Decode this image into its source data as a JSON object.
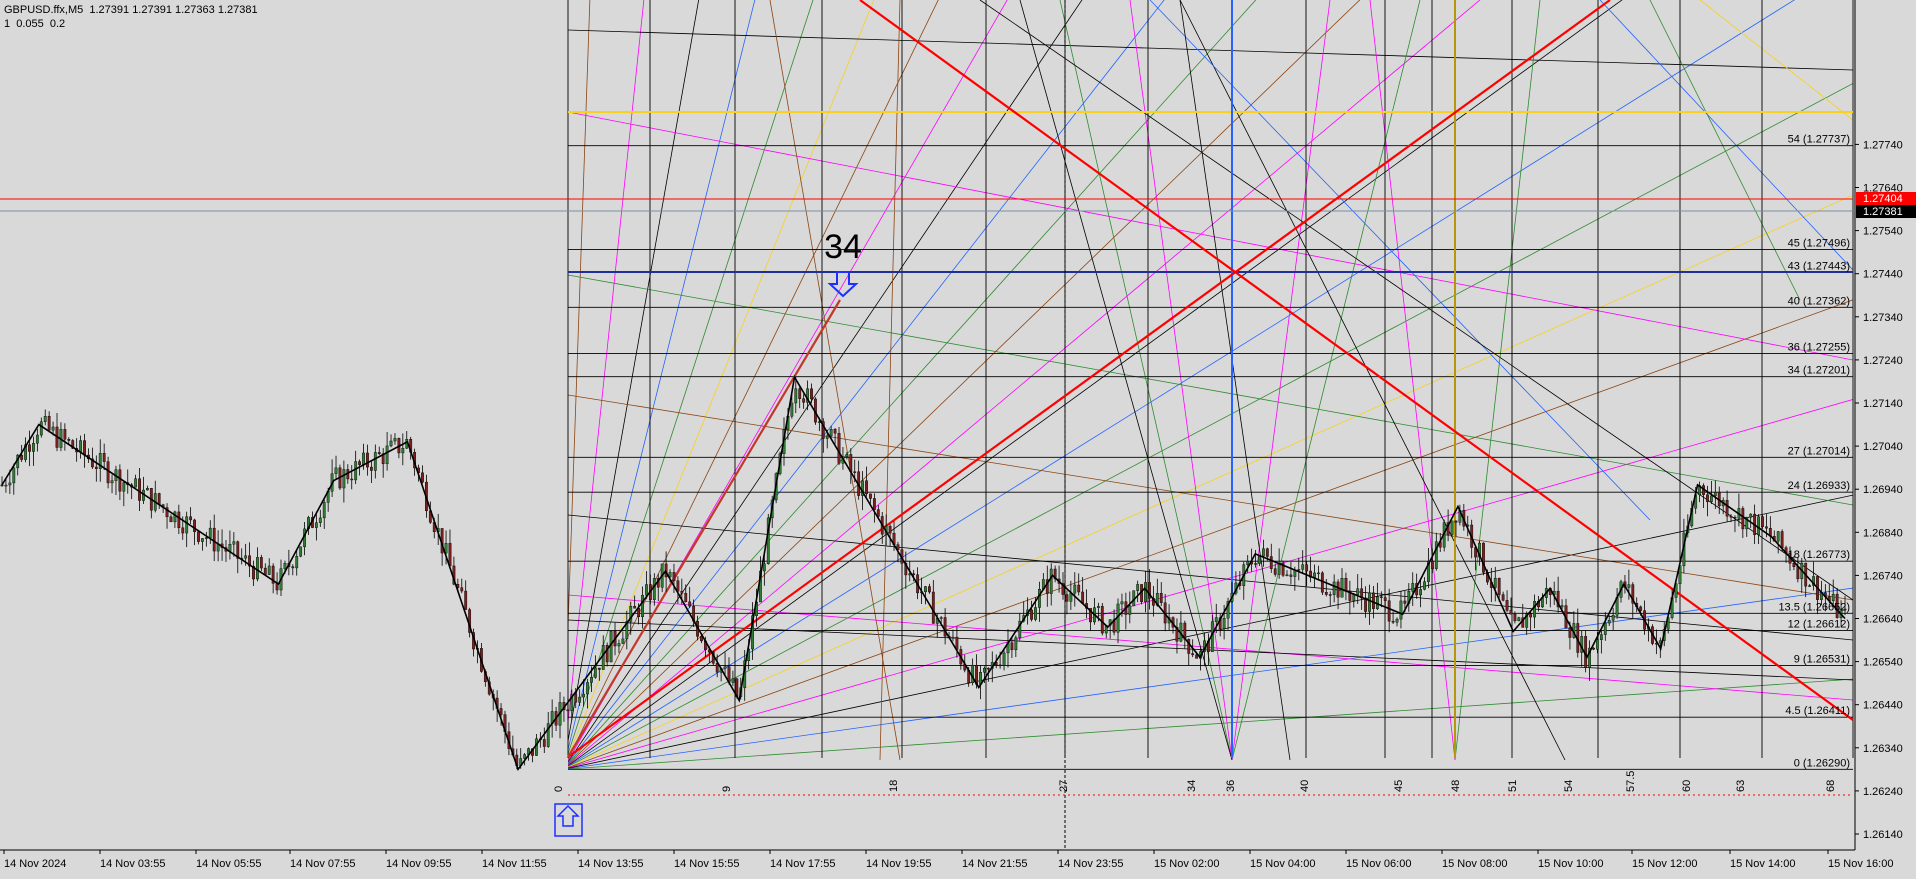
{
  "header": {
    "symbol_line": "GBPUSD.ffx,M5  1.27391 1.27391 1.27363 1.27381",
    "params_line": "1  0.055  0.2"
  },
  "colors": {
    "background": "#d9d9d9",
    "grid": "#000000",
    "candle_up": "#2e7d32",
    "candle_down": "#7b1f1f",
    "red_line": "#ff0000",
    "yellow_line": "#f7d11e",
    "blue_line": "#2463ff",
    "bid_label": "#ff0000",
    "ask_label": "#000000"
  },
  "chart_data": {
    "type": "candlestick",
    "title": "",
    "y_axis_ticks": [
      "1.27740",
      "1.27640",
      "1.27540",
      "1.27440",
      "1.27340",
      "1.27240",
      "1.27140",
      "1.27040",
      "1.26940",
      "1.26840",
      "1.26740",
      "1.26640",
      "1.26540",
      "1.26440",
      "1.26340",
      "1.26240",
      "1.26140"
    ],
    "ylim": [
      1.26115,
      1.27795
    ],
    "x_axis_ticks": [
      "14 Nov 2024",
      "14 Nov 03:55",
      "14 Nov 05:55",
      "14 Nov 07:55",
      "14 Nov 09:55",
      "14 Nov 11:55",
      "14 Nov 13:55",
      "14 Nov 15:55",
      "14 Nov 17:55",
      "14 Nov 19:55",
      "14 Nov 21:55",
      "14 Nov 23:55",
      "15 Nov 02:00",
      "15 Nov 04:00",
      "15 Nov 06:00",
      "15 Nov 08:00",
      "15 Nov 10:00",
      "15 Nov 12:00",
      "15 Nov 14:00",
      "15 Nov 16:00"
    ],
    "bid_price": "1.27404",
    "ask_price": "1.27381",
    "levels": [
      {
        "label": "54 (1.27737)",
        "price": 1.27737
      },
      {
        "label": "45 (1.27496)",
        "price": 1.27496
      },
      {
        "label": "43 (1.27443)",
        "price": 1.27443
      },
      {
        "label": "40 (1.27362)",
        "price": 1.27362
      },
      {
        "label": "36 (1.27255)",
        "price": 1.27255
      },
      {
        "label": "34 (1.27201)",
        "price": 1.27201
      },
      {
        "label": "27 (1.27014)",
        "price": 1.27014
      },
      {
        "label": "24 (1.26933)",
        "price": 1.26933
      },
      {
        "label": "18 (1.26773)",
        "price": 1.26773
      },
      {
        "label": "13.5 (1.26652)",
        "price": 1.26652
      },
      {
        "label": "12 (1.26612)",
        "price": 1.26612
      },
      {
        "label": "9 (1.26531)",
        "price": 1.26531
      },
      {
        "label": "4.5 (1.26411)",
        "price": 1.26411
      },
      {
        "label": "0 (1.26290)",
        "price": 1.2629
      }
    ],
    "time_counts": [
      "0",
      "9",
      "18",
      "27",
      "34",
      "36",
      "40",
      "45",
      "48",
      "51",
      "54",
      "57.5",
      "60",
      "63",
      "68"
    ],
    "annotation": "34",
    "price_path": [
      [
        1.2695,
        0
      ],
      [
        1.2709,
        2
      ],
      [
        1.2672,
        15
      ],
      [
        1.2696,
        18
      ],
      [
        1.2705,
        22
      ],
      [
        1.2629,
        28
      ],
      [
        1.2675,
        36
      ],
      [
        1.2645,
        40
      ],
      [
        1.272,
        43
      ],
      [
        1.2648,
        53
      ],
      [
        1.2674,
        57
      ],
      [
        1.2662,
        60
      ],
      [
        1.2671,
        62
      ],
      [
        1.2655,
        65
      ],
      [
        1.2679,
        68
      ],
      [
        1.2665,
        76
      ],
      [
        1.269,
        79
      ],
      [
        1.2661,
        82
      ],
      [
        1.2671,
        84
      ],
      [
        1.2655,
        86
      ],
      [
        1.2672,
        88
      ],
      [
        1.2657,
        90
      ],
      [
        1.2695,
        92
      ],
      [
        1.2683,
        96
      ],
      [
        1.2664,
        100
      ]
    ]
  }
}
